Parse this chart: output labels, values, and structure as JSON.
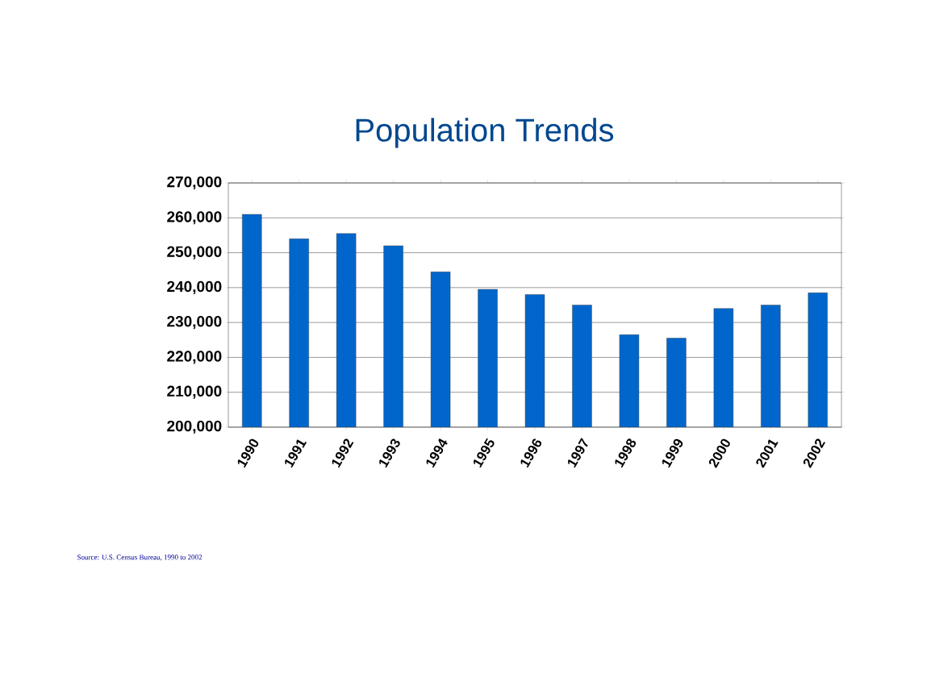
{
  "chart_data": {
    "type": "bar",
    "title": "Population Trends",
    "categories": [
      "1990",
      "1991",
      "1992",
      "1993",
      "1994",
      "1995",
      "1996",
      "1997",
      "1998",
      "1999",
      "2000",
      "2001",
      "2002"
    ],
    "values": [
      261000,
      254000,
      255500,
      252000,
      244500,
      239500,
      238000,
      235000,
      226500,
      225500,
      234000,
      235000,
      238500
    ],
    "color": "#0066cc",
    "ylim": [
      200000,
      270000
    ],
    "yticks": [
      {
        "value": 200000,
        "label": "200,000"
      },
      {
        "value": 210000,
        "label": "210,000"
      },
      {
        "value": 220000,
        "label": "220,000"
      },
      {
        "value": 230000,
        "label": "230,000"
      },
      {
        "value": 240000,
        "label": "240,000"
      },
      {
        "value": 250000,
        "label": "250,000"
      },
      {
        "value": 260000,
        "label": "260,000"
      },
      {
        "value": 270000,
        "label": "270,000"
      }
    ],
    "grid": "y",
    "annotations": [
      "Source:  U.S. Census Bureau, 1990 to 2002"
    ]
  }
}
